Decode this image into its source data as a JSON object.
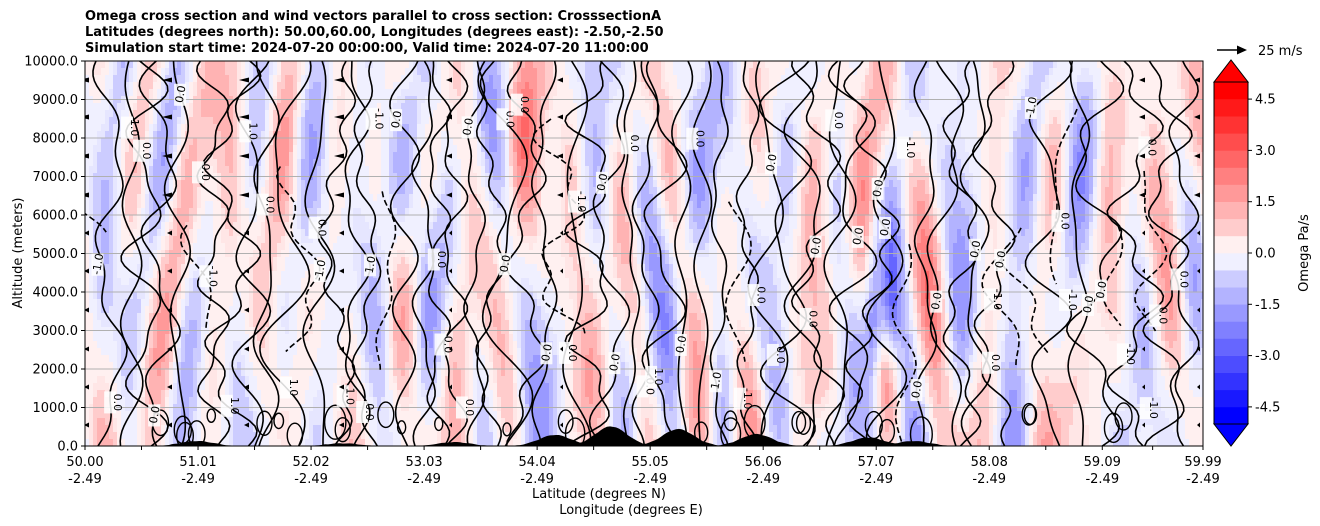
{
  "chart_data": {
    "type": "contour",
    "title_lines": [
      "Omega cross section and wind vectors parallel to cross section: CrosssectionA",
      "Latitudes (degrees north): 50.00,60.00, Longitudes (degrees east): -2.50,-2.50",
      "Simulation start time: 2024-07-20 00:00:00, Valid time: 2024-07-20 11:00:00"
    ],
    "ylabel": "Altitude (meters)",
    "xlabel_lat": "Latitude (degrees N)",
    "xlabel_lon": "Longitude (degrees E)",
    "ylim": [
      0,
      10000
    ],
    "y_ticks": [
      "0.0",
      "1000.0",
      "2000.0",
      "3000.0",
      "4000.0",
      "5000.0",
      "6000.0",
      "7000.0",
      "8000.0",
      "9000.0",
      "10000.0"
    ],
    "y_tick_values": [
      0,
      1000,
      2000,
      3000,
      4000,
      5000,
      6000,
      7000,
      8000,
      9000,
      10000
    ],
    "x_ticks_lat": [
      "50.00",
      "51.01",
      "52.02",
      "53.03",
      "54.04",
      "55.05",
      "56.06",
      "57.07",
      "58.08",
      "59.09",
      "59.99"
    ],
    "x_ticks_lon": [
      "-2.49",
      "-2.49",
      "-2.49",
      "-2.49",
      "-2.49",
      "-2.49",
      "-2.49",
      "-2.49",
      "-2.49",
      "-2.49",
      "-2.49"
    ],
    "x_tick_values": [
      50.0,
      51.01,
      52.02,
      53.03,
      54.04,
      55.05,
      56.06,
      57.07,
      58.08,
      59.09,
      59.99
    ],
    "xlim": [
      50.0,
      59.99
    ],
    "grid": "horizontal",
    "colorbar": {
      "label": "Omega Pa/s",
      "range": [
        -5.0,
        5.0
      ],
      "ticks": [
        "-4.5",
        "-3.0",
        "-1.5",
        "0.0",
        "1.5",
        "3.0",
        "4.5"
      ],
      "tick_values": [
        -4.5,
        -3.0,
        -1.5,
        0.0,
        1.5,
        3.0,
        4.5
      ],
      "extend": "both",
      "cmap": "bwr"
    },
    "wind_key": {
      "label": "25 m/s",
      "speed": 25
    },
    "contour_labels": [
      "0.0",
      "1.0",
      "-1.0"
    ],
    "terrain_peaks": [
      {
        "lat": 51.0,
        "alt": 120
      },
      {
        "lat": 52.3,
        "alt": 60
      },
      {
        "lat": 53.3,
        "alt": 90
      },
      {
        "lat": 54.2,
        "alt": 280
      },
      {
        "lat": 54.7,
        "alt": 500
      },
      {
        "lat": 55.3,
        "alt": 430
      },
      {
        "lat": 56.0,
        "alt": 300
      },
      {
        "lat": 57.0,
        "alt": 210
      },
      {
        "lat": 57.4,
        "alt": 120
      }
    ]
  }
}
